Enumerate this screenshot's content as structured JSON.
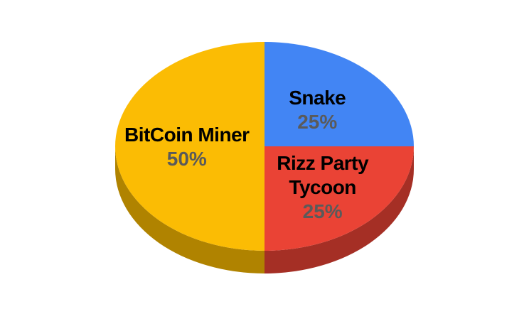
{
  "chart_data": {
    "type": "pie",
    "style": "3d",
    "slices": [
      {
        "label_lines": [
          "BitCoin Miner"
        ],
        "value": 50,
        "percent_label": "50%",
        "color": "#FBBC04",
        "side_color": "#B08300"
      },
      {
        "label_lines": [
          "Snake"
        ],
        "value": 25,
        "percent_label": "25%",
        "color": "#4285F4",
        "side_color": "#2D5DAB"
      },
      {
        "label_lines": [
          "Rizz Party",
          "Tycoon"
        ],
        "value": 25,
        "percent_label": "25%",
        "color": "#EA4335",
        "side_color": "#A52F25"
      }
    ],
    "legend": "none"
  }
}
